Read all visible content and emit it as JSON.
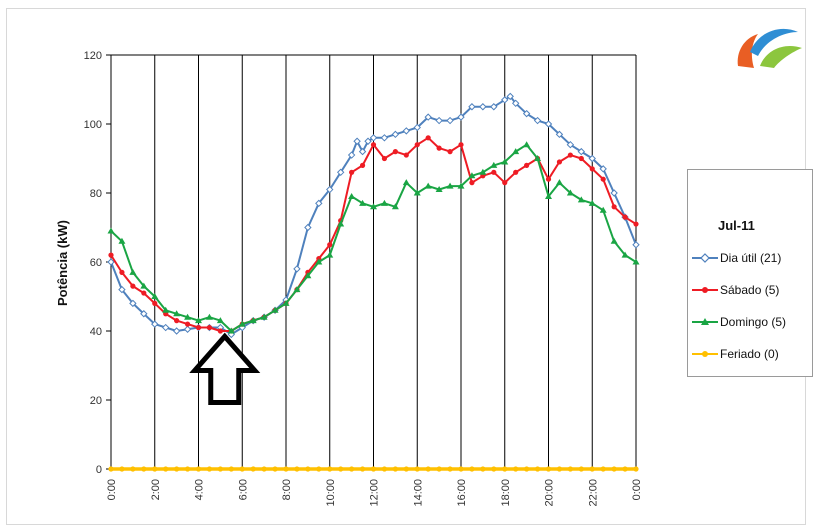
{
  "chart_data": {
    "type": "line",
    "title": "",
    "xlabel": "",
    "ylabel": "Potência (kW)",
    "ylim": [
      0,
      120
    ],
    "yticks": [
      0,
      20,
      40,
      60,
      80,
      100,
      120
    ],
    "xlim": [
      0,
      24
    ],
    "xticks": [
      "0:00",
      "2:00",
      "4:00",
      "6:00",
      "8:00",
      "10:00",
      "12:00",
      "14:00",
      "16:00",
      "18:00",
      "20:00",
      "22:00",
      "0:00"
    ],
    "grid": "vertical",
    "legend": {
      "title": "Jul-11",
      "placement": "right",
      "entries": [
        "Dia útil (21)",
        "Sábado (5)",
        "Domingo (5)",
        "Feriado (0)"
      ]
    },
    "series": [
      {
        "name": "Dia útil (21)",
        "color": "#4f81bd",
        "marker": "diamond",
        "x": [
          0,
          0.5,
          1,
          1.5,
          2,
          2.5,
          3,
          3.5,
          4,
          4.5,
          5,
          5.5,
          6,
          6.5,
          7,
          7.5,
          8,
          8.5,
          9,
          9.5,
          10,
          10.5,
          11,
          11.25,
          11.5,
          11.75,
          12,
          12.5,
          13,
          13.5,
          14,
          14.5,
          15,
          15.5,
          16,
          16.5,
          17,
          17.5,
          18,
          18.25,
          18.5,
          19,
          19.5,
          20,
          20.5,
          21,
          21.5,
          22,
          22.5,
          23,
          23.5,
          24
        ],
        "y": [
          60,
          52,
          48,
          45,
          42,
          41,
          40,
          40.5,
          41,
          41,
          41,
          39,
          41,
          43,
          44,
          46,
          49,
          58,
          70,
          77,
          81,
          86,
          91,
          95,
          92,
          95,
          96,
          96,
          97,
          98,
          99,
          102,
          101,
          101,
          102,
          105,
          105,
          105,
          107,
          108,
          106,
          103,
          101,
          100,
          97,
          94,
          92,
          90,
          87,
          80,
          73,
          65
        ]
      },
      {
        "name": "Sábado (5)",
        "color": "#ee1c24",
        "marker": "circle",
        "x": [
          0,
          0.5,
          1,
          1.5,
          2,
          2.5,
          3,
          3.5,
          4,
          4.5,
          5,
          5.5,
          6,
          6.5,
          7,
          7.5,
          8,
          8.5,
          9,
          9.5,
          10,
          10.5,
          11,
          11.5,
          12,
          12.5,
          13,
          13.5,
          14,
          14.5,
          15,
          15.5,
          16,
          16.5,
          17,
          17.5,
          18,
          18.5,
          19,
          19.5,
          20,
          20.5,
          21,
          21.5,
          22,
          22.5,
          23,
          23.5,
          24
        ],
        "y": [
          62,
          57,
          53,
          51,
          48,
          45,
          43,
          42,
          41,
          41,
          40,
          40,
          42,
          43,
          44,
          46,
          48,
          52,
          57,
          61,
          65,
          72,
          86,
          88,
          94,
          90,
          92,
          91,
          94,
          96,
          93,
          92,
          94,
          83,
          85,
          86,
          83,
          86,
          88,
          90,
          84,
          89,
          91,
          90,
          87,
          84,
          76,
          73,
          71
        ]
      },
      {
        "name": "Domingo (5)",
        "color": "#1aa544",
        "marker": "triangle",
        "x": [
          0,
          0.5,
          1,
          1.5,
          2,
          2.5,
          3,
          3.5,
          4,
          4.5,
          5,
          5.5,
          6,
          6.5,
          7,
          7.5,
          8,
          8.5,
          9,
          9.5,
          10,
          10.5,
          11,
          11.5,
          12,
          12.5,
          13,
          13.5,
          14,
          14.5,
          15,
          15.5,
          16,
          16.5,
          17,
          17.5,
          18,
          18.5,
          19,
          19.5,
          20,
          20.5,
          21,
          21.5,
          22,
          22.5,
          23,
          23.5,
          24
        ],
        "y": [
          69,
          66,
          57,
          53,
          50,
          46,
          45,
          44,
          43,
          44,
          43,
          40,
          42,
          43,
          44,
          46,
          48,
          52,
          56,
          60,
          62,
          71,
          79,
          77,
          76,
          77,
          76,
          83,
          80,
          82,
          81,
          82,
          82,
          85,
          86,
          88,
          89,
          92,
          94,
          90,
          79,
          83,
          80,
          78,
          77,
          75,
          66,
          62,
          60
        ]
      },
      {
        "name": "Feriado (0)",
        "color": "#ffc000",
        "marker": "circle",
        "x": [
          0,
          0.5,
          1,
          1.5,
          2,
          2.5,
          3,
          3.5,
          4,
          4.5,
          5,
          5.5,
          6,
          6.5,
          7,
          7.5,
          8,
          8.5,
          9,
          9.5,
          10,
          10.5,
          11,
          11.5,
          12,
          12.5,
          13,
          13.5,
          14,
          14.5,
          15,
          15.5,
          16,
          16.5,
          17,
          17.5,
          18,
          18.5,
          19,
          19.5,
          20,
          20.5,
          21,
          21.5,
          22,
          22.5,
          23,
          23.5,
          24
        ],
        "y": [
          0,
          0,
          0,
          0,
          0,
          0,
          0,
          0,
          0,
          0,
          0,
          0,
          0,
          0,
          0,
          0,
          0,
          0,
          0,
          0,
          0,
          0,
          0,
          0,
          0,
          0,
          0,
          0,
          0,
          0,
          0,
          0,
          0,
          0,
          0,
          0,
          0,
          0,
          0,
          0,
          0,
          0,
          0,
          0,
          0,
          0,
          0,
          0,
          0
        ]
      }
    ],
    "annotations": [
      {
        "type": "arrow-up",
        "x": 5.2,
        "y": 39,
        "icon": "up-arrow-icon"
      }
    ]
  },
  "logo": {
    "icon": "logo-icon",
    "colors": [
      "#e95e24",
      "#2f8ed4",
      "#8cc63e"
    ]
  }
}
